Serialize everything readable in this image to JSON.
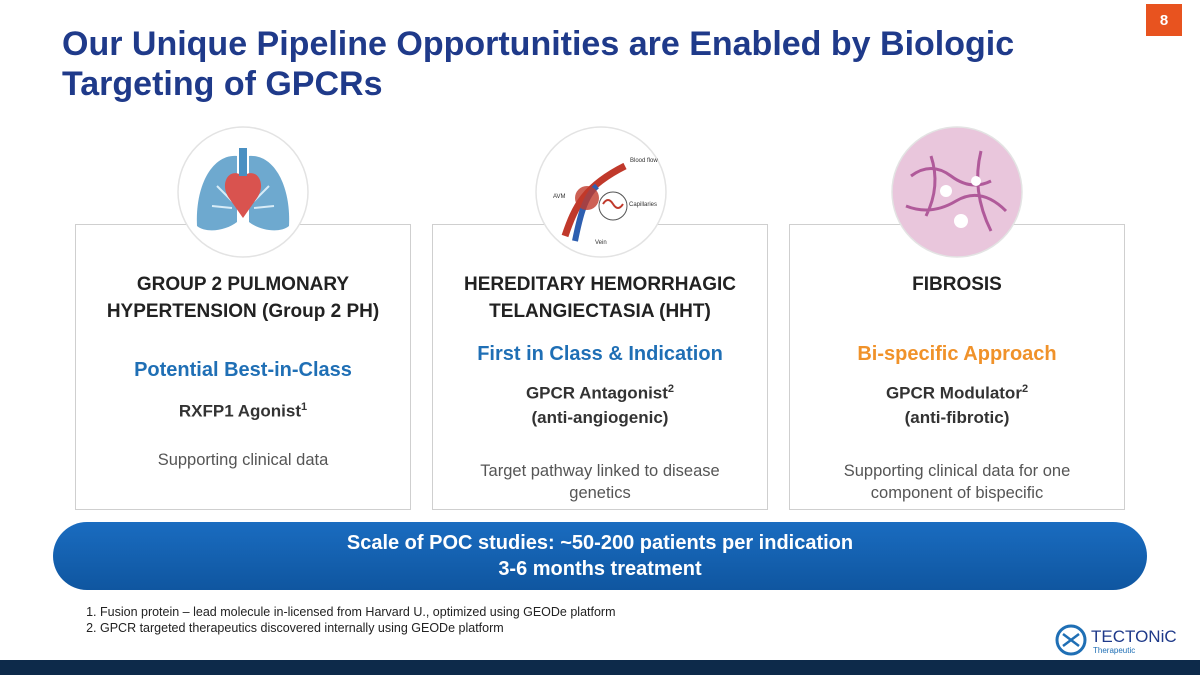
{
  "page_number": "8",
  "title": "Our Unique Pipeline Opportunities are Enabled by Biologic Targeting of GPCRs",
  "cards": [
    {
      "heading": [
        "GROUP 2 PULMONARY",
        "HYPERTENSION (Group 2 PH)"
      ],
      "highlight": "Potential Best-in-Class",
      "mechanism": "RXFP1 Agonist",
      "footnote_ref": "1",
      "note": [
        "Supporting clinical data"
      ]
    },
    {
      "heading": [
        "HEREDITARY HEMORRHAGIC",
        "TELANGIECTASIA (HHT)"
      ],
      "highlight": "First in Class & Indication",
      "mechanism": "GPCR Antagonist",
      "footnote_ref": "2",
      "mechanism_detail": "(anti-angiogenic)",
      "note": [
        "Target pathway linked to disease",
        "genetics"
      ],
      "image_labels": [
        "Blood flow",
        "AVM",
        "Capillaries",
        "Vein"
      ]
    },
    {
      "heading": [
        "FIBROSIS"
      ],
      "highlight": "Bi-specific Approach",
      "mechanism": "GPCR Modulator",
      "footnote_ref": "2",
      "mechanism_detail": "(anti-fibrotic)",
      "note": [
        "Supporting clinical data for one",
        "component of bispecific"
      ]
    }
  ],
  "banner": [
    "Scale of POC studies: ~50-200 patients per indication",
    "3-6 months treatment"
  ],
  "footnotes": [
    "Fusion protein – lead molecule in-licensed from Harvard U., optimized using GEODe platform",
    "GPCR targeted therapeutics discovered internally using GEODe platform"
  ],
  "logo": {
    "name": "TECTONiC",
    "tagline": "Therapeutic"
  }
}
